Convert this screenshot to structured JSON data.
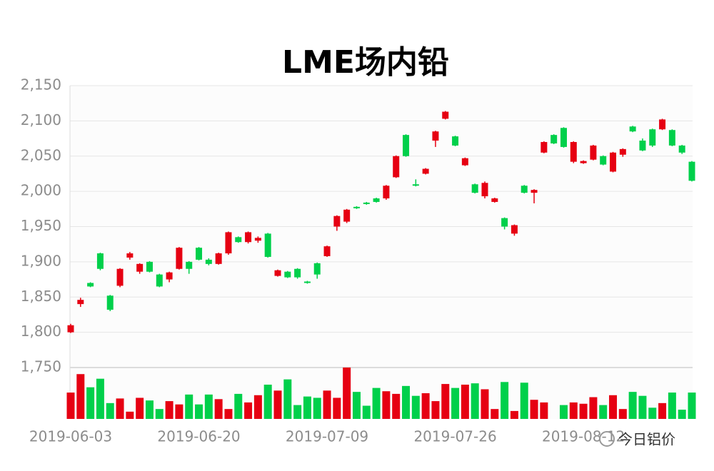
{
  "chart_data": {
    "type": "candlestick",
    "title": "LME场内铅",
    "categories": [
      "2019-06-03",
      null,
      null,
      null,
      null,
      null,
      null,
      null,
      null,
      null,
      null,
      null,
      null,
      "2019-06-20",
      null,
      null,
      null,
      null,
      null,
      null,
      null,
      null,
      null,
      null,
      null,
      null,
      "2019-07-09",
      null,
      null,
      null,
      null,
      null,
      null,
      null,
      null,
      null,
      null,
      null,
      null,
      "2019-07-26",
      null,
      null,
      null,
      null,
      null,
      null,
      null,
      null,
      null,
      null,
      null,
      null,
      "2019-08-12",
      null,
      null,
      null,
      null,
      null,
      null,
      null,
      null,
      null,
      null,
      null
    ],
    "open": [
      1800,
      1840,
      1870,
      1912,
      1852,
      1866,
      1906,
      1886,
      1900,
      1882,
      1875,
      1890,
      1900,
      1920,
      1903,
      1897,
      1912,
      1935,
      1928,
      1930,
      1940,
      1880,
      1886,
      1890,
      1872,
      1898,
      1908,
      1950,
      1957,
      1978,
      1984,
      1990,
      1990,
      2020,
      2080,
      2010,
      2025,
      2072,
      2103,
      2078,
      2037,
      2010,
      1993,
      1985,
      1962,
      1940,
      2008,
      1998,
      2055,
      2080,
      2090,
      2042,
      2040,
      2045,
      2050,
      2028,
      2052,
      2092,
      2072,
      2088,
      2088,
      2087,
      2065,
      2042
    ],
    "high": [
      1812,
      1849,
      1871,
      1913,
      1853,
      1891,
      1914,
      1898,
      1901,
      1883,
      1886,
      1921,
      1901,
      1921,
      1905,
      1913,
      1943,
      1936,
      1943,
      1936,
      1941,
      1889,
      1887,
      1891,
      1873,
      1899,
      1923,
      1966,
      1975,
      1979,
      1985,
      1991,
      2009,
      2051,
      2081,
      2017,
      2033,
      2086,
      2114,
      2079,
      2048,
      2011,
      2014,
      1991,
      1963,
      1953,
      2009,
      2003,
      2071,
      2081,
      2091,
      2071,
      2044,
      2066,
      2051,
      2056,
      2061,
      2093,
      2075,
      2089,
      2103,
      2088,
      2066,
      2043
    ],
    "low": [
      1799,
      1836,
      1864,
      1888,
      1830,
      1864,
      1903,
      1883,
      1885,
      1864,
      1871,
      1889,
      1883,
      1902,
      1895,
      1896,
      1910,
      1927,
      1926,
      1927,
      1906,
      1879,
      1877,
      1876,
      1869,
      1876,
      1907,
      1944,
      1955,
      1975,
      1981,
      1984,
      1988,
      2019,
      2049,
      2007,
      2024,
      2063,
      2102,
      2064,
      2036,
      1997,
      1990,
      1984,
      1946,
      1937,
      1997,
      1983,
      2054,
      2067,
      2062,
      2040,
      2039,
      2044,
      2037,
      2027,
      2049,
      2084,
      2057,
      2063,
      2087,
      2064,
      2053,
      2014
    ],
    "close": [
      1810,
      1846,
      1865,
      1890,
      1832,
      1890,
      1912,
      1897,
      1886,
      1865,
      1885,
      1920,
      1890,
      1903,
      1897,
      1912,
      1942,
      1928,
      1942,
      1934,
      1907,
      1888,
      1878,
      1878,
      1870,
      1882,
      1922,
      1965,
      1974,
      1976,
      1982,
      1985,
      2008,
      2050,
      2050,
      2008,
      2032,
      2085,
      2113,
      2065,
      2047,
      1998,
      2012,
      1990,
      1950,
      1952,
      1998,
      2002,
      2070,
      2068,
      2063,
      2070,
      2043,
      2065,
      2038,
      2055,
      2060,
      2085,
      2058,
      2065,
      2102,
      2065,
      2055,
      2015
    ],
    "volume": [
      40,
      68,
      48,
      61,
      24,
      31,
      11,
      32,
      28,
      15,
      27,
      22,
      37,
      22,
      37,
      30,
      15,
      38,
      25,
      36,
      52,
      43,
      60,
      21,
      34,
      32,
      43,
      32,
      78,
      41,
      20,
      47,
      42,
      38,
      50,
      35,
      39,
      27,
      53,
      47,
      52,
      54,
      45,
      15,
      56,
      12,
      55,
      29,
      25,
      null,
      21,
      25,
      23,
      33,
      21,
      36,
      15,
      41,
      35,
      17,
      24,
      40,
      14,
      40
    ],
    "up_color": "#e60012",
    "down_color": "#00d04b",
    "ylim": [
      1750,
      2150
    ],
    "yticks": [
      {
        "value": 1750,
        "label": "1,750"
      },
      {
        "value": 1800,
        "label": "1,800"
      },
      {
        "value": 1850,
        "label": "1,850"
      },
      {
        "value": 1900,
        "label": "1,900"
      },
      {
        "value": 1950,
        "label": "1,950"
      },
      {
        "value": 2000,
        "label": "2,000"
      },
      {
        "value": 2050,
        "label": "2,050"
      },
      {
        "value": 2100,
        "label": "2,100"
      },
      {
        "value": 2150,
        "label": "2,150"
      }
    ],
    "grid": true
  },
  "watermark": "今日铝价"
}
